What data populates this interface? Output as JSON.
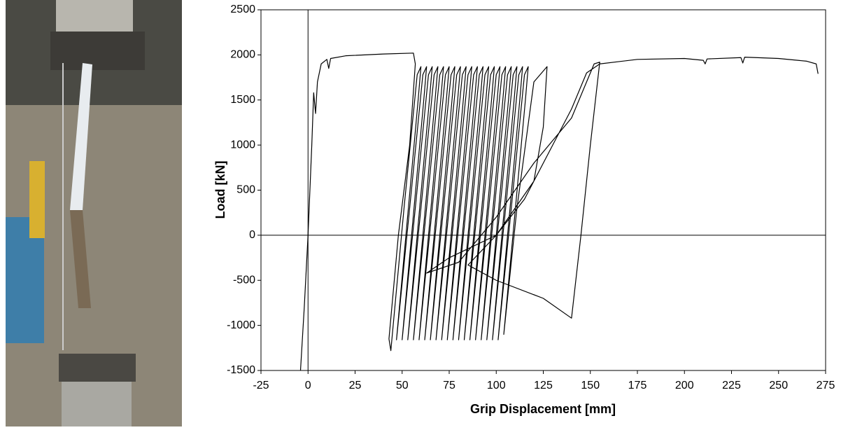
{
  "chart_data": {
    "type": "line",
    "x_label": "Grip Displacement [mm]",
    "y_label": "Load [kN]",
    "color": "#000000",
    "xlim": [
      -25,
      275
    ],
    "ylim": [
      -1500,
      2500
    ],
    "xticks": [
      -25,
      0,
      25,
      50,
      75,
      100,
      125,
      150,
      175,
      200,
      225,
      250,
      275
    ],
    "yticks": [
      -1500,
      -1000,
      -500,
      0,
      500,
      1000,
      1500,
      2000,
      2500
    ],
    "x": [
      -4,
      -2,
      0,
      2,
      3,
      4,
      5,
      7,
      10,
      11,
      12,
      20,
      40,
      56,
      57,
      54,
      48,
      43,
      44,
      51,
      58,
      60,
      58.5,
      47,
      54,
      61,
      63,
      61.5,
      50,
      57,
      64,
      66,
      64.5,
      53,
      60,
      67,
      69,
      67.5,
      56,
      63,
      70,
      72,
      70.5,
      59,
      66,
      73,
      75,
      73.5,
      62,
      69,
      76,
      78,
      76.5,
      65,
      72,
      79,
      81,
      79.5,
      68,
      75,
      82,
      84,
      82.5,
      71,
      78,
      85,
      87,
      85.5,
      74,
      81,
      88,
      90,
      88.5,
      77,
      84,
      91,
      93,
      91.5,
      80,
      87,
      94,
      96,
      94.5,
      83,
      90,
      97,
      99,
      97.5,
      86,
      93,
      100,
      102,
      100.5,
      89,
      96,
      103,
      105,
      103.5,
      92,
      99,
      106,
      108,
      106.5,
      95,
      102,
      109,
      111,
      109.5,
      98,
      105,
      112,
      114,
      112.5,
      101,
      108,
      115,
      117,
      115.5,
      104,
      111,
      120,
      127,
      125,
      120,
      100,
      75,
      63,
      80,
      100,
      120,
      140,
      148,
      152,
      155,
      150,
      145,
      140,
      125,
      100,
      85,
      100,
      115,
      130,
      140,
      148,
      155,
      175,
      200,
      210,
      211,
      212,
      230,
      231,
      232,
      250,
      265,
      270,
      271
    ],
    "values": [
      -1500,
      -800,
      0,
      1000,
      1580,
      1350,
      1700,
      1900,
      1950,
      1850,
      1960,
      1990,
      2010,
      2020,
      1900,
      1000,
      0,
      -1150,
      -1280,
      300,
      1780,
      1870,
      1500,
      -1160,
      300,
      1780,
      1870,
      1500,
      -1160,
      300,
      1780,
      1870,
      1500,
      -1160,
      300,
      1780,
      1870,
      1500,
      -1160,
      300,
      1780,
      1870,
      1500,
      -1160,
      300,
      1780,
      1870,
      1500,
      -1160,
      300,
      1780,
      1870,
      1500,
      -1160,
      300,
      1780,
      1870,
      1500,
      -1160,
      300,
      1780,
      1870,
      1500,
      -1160,
      300,
      1780,
      1870,
      1500,
      -1160,
      300,
      1780,
      1870,
      1500,
      -1160,
      300,
      1780,
      1870,
      1500,
      -1160,
      300,
      1780,
      1870,
      1500,
      -1160,
      300,
      1780,
      1870,
      1500,
      -1160,
      300,
      1780,
      1870,
      1500,
      -1160,
      300,
      1780,
      1870,
      1500,
      -1160,
      300,
      1780,
      1870,
      1500,
      -1160,
      300,
      1780,
      1870,
      1500,
      -1160,
      300,
      1780,
      1870,
      1500,
      -1160,
      300,
      1780,
      1870,
      1500,
      -1100,
      300,
      1700,
      1870,
      1200,
      600,
      0,
      -250,
      -420,
      -300,
      200,
      800,
      1300,
      1700,
      1900,
      1920,
      1000,
      0,
      -920,
      -700,
      -500,
      -330,
      0,
      400,
      1000,
      1400,
      1800,
      1900,
      1950,
      1960,
      1940,
      1900,
      1955,
      1970,
      1910,
      1975,
      1960,
      1930,
      1900,
      1790
    ]
  }
}
